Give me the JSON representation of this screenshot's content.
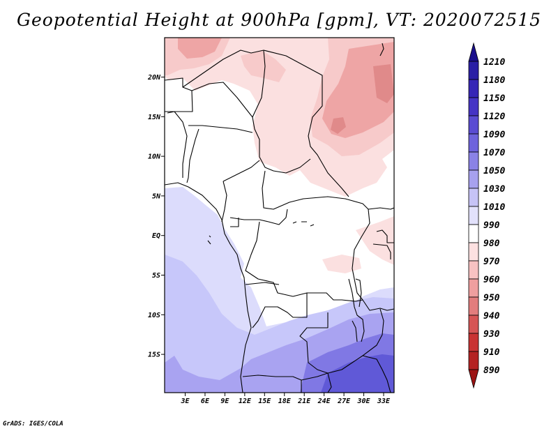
{
  "title": "Geopotential Height at 900hPa [gpm], VT: 2020072515",
  "credit": "GrADS: IGES/COLA",
  "chart_data": {
    "type": "heatmap",
    "title": "Geopotential Height at 900hPa [gpm], VT: 2020072515",
    "variable": "Geopotential Height",
    "level": "900hPa",
    "units": "gpm",
    "valid_time": "2020072515",
    "x_ticks": [
      "3E",
      "6E",
      "9E",
      "12E",
      "15E",
      "18E",
      "21E",
      "24E",
      "27E",
      "30E",
      "33E"
    ],
    "y_ticks": [
      "20N",
      "15N",
      "10N",
      "5N",
      "EQ",
      "5S",
      "10S",
      "15S"
    ],
    "colorbar": {
      "levels": [
        "1210",
        "1180",
        "1150",
        "1120",
        "1090",
        "1070",
        "1050",
        "1030",
        "1010",
        "990",
        "980",
        "970",
        "960",
        "950",
        "940",
        "930",
        "910",
        "890"
      ],
      "colors": [
        "#1a0f8c",
        "#2a1fa5",
        "#3626b6",
        "#4534c5",
        "#5a4cd2",
        "#6e63dc",
        "#8a82e6",
        "#a7a1ee",
        "#c6c3f6",
        "#e2e1fb",
        "#ffffff",
        "#fde1e1",
        "#f8c2c2",
        "#ef9f9f",
        "#e27d7d",
        "#d65555",
        "#c93333",
        "#b42222",
        "#9c1414"
      ]
    },
    "map_colors": {
      "h1": "#dcdcfc",
      "h2": "#c7c7fa",
      "h3": "#a9a3f1",
      "h4": "#8078e4",
      "h5": "#6059d7",
      "l1": "#fbe0e0",
      "l2": "#f7caca",
      "l3": "#eea5a5",
      "l4": "#e08a8a"
    }
  }
}
